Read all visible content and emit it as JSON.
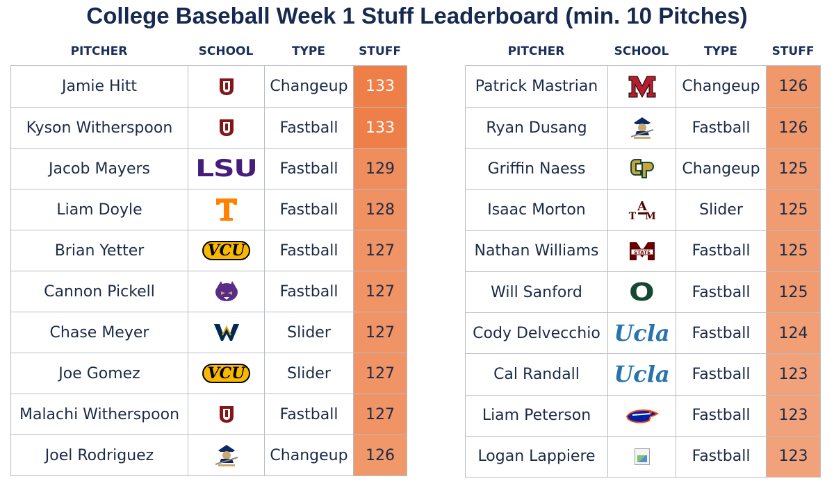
{
  "title": "College Baseball Week 1 Stuff Leaderboard (min. 10 Pitches)",
  "headers": {
    "pitcher": "PITCHER",
    "school": "SCHOOL",
    "type": "TYPE",
    "stuff": "STUFF"
  },
  "stuff_color_scale": {
    "low": "#f2a27a",
    "high": "#ee7f49"
  },
  "left_table": [
    {
      "pitcher": "Jamie Hitt",
      "school_logo": "oklahoma-logo",
      "type": "Changeup",
      "stuff": "133"
    },
    {
      "pitcher": "Kyson Witherspoon",
      "school_logo": "oklahoma-logo",
      "type": "Fastball",
      "stuff": "133"
    },
    {
      "pitcher": "Jacob Mayers",
      "school_logo": "lsu-logo",
      "school_logo_text": "LSU",
      "type": "Fastball",
      "stuff": "129"
    },
    {
      "pitcher": "Liam Doyle",
      "school_logo": "tennessee-logo",
      "school_logo_text": "T",
      "type": "Fastball",
      "stuff": "128"
    },
    {
      "pitcher": "Brian Yetter",
      "school_logo": "vcu-logo",
      "school_logo_text": "VCU",
      "type": "Fastball",
      "stuff": "127"
    },
    {
      "pitcher": "Cannon Pickell",
      "school_logo": "western-carolina-logo",
      "type": "Fastball",
      "stuff": "127"
    },
    {
      "pitcher": "Chase Meyer",
      "school_logo": "west-virginia-logo",
      "type": "Slider",
      "stuff": "127"
    },
    {
      "pitcher": "Joe Gomez",
      "school_logo": "vcu-logo",
      "school_logo_text": "VCU",
      "type": "Slider",
      "stuff": "127"
    },
    {
      "pitcher": "Malachi Witherspoon",
      "school_logo": "oklahoma-logo",
      "type": "Fastball",
      "stuff": "127"
    },
    {
      "pitcher": "Joel Rodriguez",
      "school_logo": "buccaneers-logo",
      "type": "Changeup",
      "stuff": "126"
    }
  ],
  "right_table": [
    {
      "pitcher": "Patrick Mastrian",
      "school_logo": "miami-ohio-logo",
      "school_logo_text": "M",
      "type": "Changeup",
      "stuff": "126"
    },
    {
      "pitcher": "Ryan Dusang",
      "school_logo": "buccaneers-logo",
      "type": "Fastball",
      "stuff": "126"
    },
    {
      "pitcher": "Griffin Naess",
      "school_logo": "cal-poly-logo",
      "school_logo_text": "CP",
      "type": "Changeup",
      "stuff": "125"
    },
    {
      "pitcher": "Isaac Morton",
      "school_logo": "texas-am-logo",
      "school_logo_text": "ATM",
      "type": "Slider",
      "stuff": "125"
    },
    {
      "pitcher": "Nathan Williams",
      "school_logo": "mississippi-state-logo",
      "type": "Fastball",
      "stuff": "125"
    },
    {
      "pitcher": "Will Sanford",
      "school_logo": "oregon-logo",
      "school_logo_text": "O",
      "type": "Fastball",
      "stuff": "125"
    },
    {
      "pitcher": "Cody Delvecchio",
      "school_logo": "ucla-logo",
      "school_logo_text": "Ucla",
      "type": "Fastball",
      "stuff": "124"
    },
    {
      "pitcher": "Cal Randall",
      "school_logo": "ucla-logo",
      "school_logo_text": "Ucla",
      "type": "Fastball",
      "stuff": "123"
    },
    {
      "pitcher": "Liam Peterson",
      "school_logo": "florida-gators-logo",
      "type": "Fastball",
      "stuff": "123"
    },
    {
      "pitcher": "Logan Lappiere",
      "school_logo": "broken-image-icon",
      "type": "Fastball",
      "stuff": "123"
    }
  ]
}
